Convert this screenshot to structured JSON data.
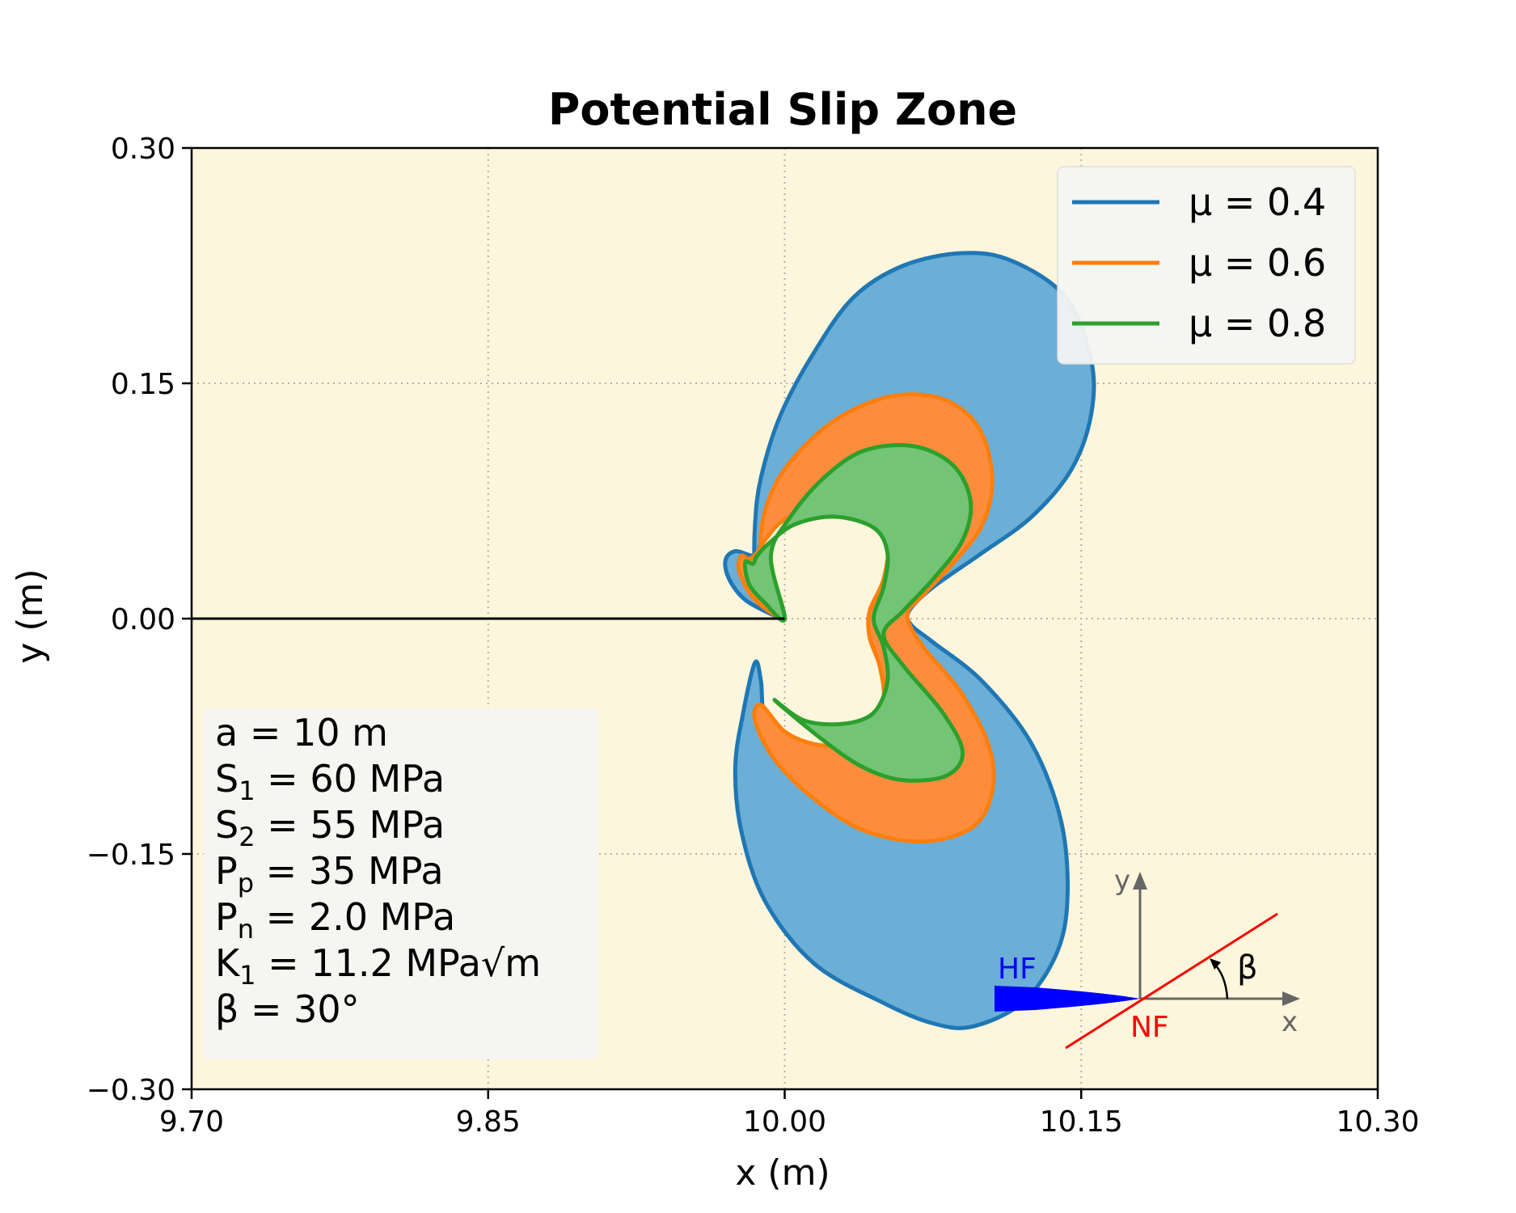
{
  "chart_data": {
    "type": "area",
    "title": "Potential Slip Zone",
    "xlabel": "x (m)",
    "ylabel": "y (m)",
    "xlim": [
      9.7,
      10.3
    ],
    "ylim": [
      -0.3,
      0.3
    ],
    "x_ticks": [
      "9.70",
      "9.85",
      "10.00",
      "10.15",
      "10.30"
    ],
    "y_ticks": [
      "0.30",
      "0.15",
      "0.00",
      "−0.15",
      "−0.30"
    ],
    "x_tick_values": [
      9.7,
      9.85,
      10.0,
      10.15,
      10.3
    ],
    "y_tick_values": [
      0.3,
      0.15,
      0.0,
      -0.15,
      -0.3
    ],
    "grid": true,
    "legend_position": "top-right",
    "background_color": "#fdf6dc",
    "crack_line": {
      "x": [
        9.7,
        10.0
      ],
      "y": [
        0.0,
        0.0
      ],
      "color": "#000000"
    },
    "series": [
      {
        "name": "μ = 0.4",
        "color": "#1f77b4",
        "fill": "#6baed6",
        "points": [
          [
            9.985,
            0.04
          ],
          [
            9.975,
            0.043
          ],
          [
            9.97,
            0.037
          ],
          [
            9.972,
            0.025
          ],
          [
            9.98,
            0.012
          ],
          [
            9.993,
            0.003
          ],
          [
            10.0,
            0.0
          ],
          [
            9.988,
            0.01
          ],
          [
            9.985,
            0.03
          ],
          [
            9.985,
            0.06
          ],
          [
            9.988,
            0.09
          ],
          [
            9.998,
            0.13
          ],
          [
            10.015,
            0.17
          ],
          [
            10.035,
            0.205
          ],
          [
            10.06,
            0.225
          ],
          [
            10.09,
            0.233
          ],
          [
            10.115,
            0.228
          ],
          [
            10.142,
            0.205
          ],
          [
            10.155,
            0.165
          ],
          [
            10.155,
            0.13
          ],
          [
            10.145,
            0.095
          ],
          [
            10.125,
            0.065
          ],
          [
            10.1,
            0.042
          ],
          [
            10.075,
            0.02
          ],
          [
            10.063,
            0.005
          ],
          [
            10.064,
            -0.004
          ],
          [
            10.075,
            -0.015
          ],
          [
            10.1,
            -0.04
          ],
          [
            10.125,
            -0.08
          ],
          [
            10.14,
            -0.13
          ],
          [
            10.143,
            -0.18
          ],
          [
            10.137,
            -0.215
          ],
          [
            10.12,
            -0.245
          ],
          [
            10.095,
            -0.26
          ],
          [
            10.075,
            -0.258
          ],
          [
            10.05,
            -0.245
          ],
          [
            10.015,
            -0.22
          ],
          [
            9.99,
            -0.18
          ],
          [
            9.978,
            -0.135
          ],
          [
            9.975,
            -0.095
          ],
          [
            9.979,
            -0.06
          ],
          [
            9.985,
            -0.028
          ],
          [
            9.988,
            -0.04
          ],
          [
            9.99,
            -0.065
          ],
          [
            10.0,
            -0.08
          ],
          [
            10.015,
            -0.088
          ],
          [
            10.03,
            -0.088
          ],
          [
            10.045,
            -0.078
          ],
          [
            10.053,
            -0.06
          ],
          [
            10.053,
            -0.038
          ],
          [
            10.048,
            -0.018
          ],
          [
            10.043,
            0.0
          ],
          [
            10.048,
            0.018
          ],
          [
            10.054,
            0.04
          ],
          [
            10.052,
            0.06
          ],
          [
            10.04,
            0.072
          ],
          [
            10.02,
            0.074
          ],
          [
            10.003,
            0.068
          ],
          [
            9.993,
            0.058
          ],
          [
            9.988,
            0.048
          ]
        ]
      },
      {
        "name": "μ = 0.6",
        "color": "#ff7f0e",
        "fill": "#fd8d3c",
        "points": [
          [
            9.982,
            0.038
          ],
          [
            9.978,
            0.04
          ],
          [
            9.977,
            0.03
          ],
          [
            9.985,
            0.012
          ],
          [
            10.0,
            0.0
          ],
          [
            9.99,
            0.025
          ],
          [
            9.988,
            0.055
          ],
          [
            9.995,
            0.085
          ],
          [
            10.01,
            0.11
          ],
          [
            10.03,
            0.13
          ],
          [
            10.055,
            0.142
          ],
          [
            10.08,
            0.14
          ],
          [
            10.098,
            0.122
          ],
          [
            10.105,
            0.09
          ],
          [
            10.1,
            0.06
          ],
          [
            10.085,
            0.035
          ],
          [
            10.07,
            0.015
          ],
          [
            10.062,
            0.002
          ],
          [
            10.07,
            -0.018
          ],
          [
            10.088,
            -0.045
          ],
          [
            10.103,
            -0.08
          ],
          [
            10.105,
            -0.11
          ],
          [
            10.095,
            -0.133
          ],
          [
            10.07,
            -0.142
          ],
          [
            10.04,
            -0.135
          ],
          [
            10.015,
            -0.115
          ],
          [
            9.995,
            -0.09
          ],
          [
            9.985,
            -0.065
          ],
          [
            9.988,
            -0.055
          ],
          [
            10.0,
            -0.072
          ],
          [
            10.015,
            -0.08
          ],
          [
            10.03,
            -0.08
          ],
          [
            10.043,
            -0.07
          ],
          [
            10.05,
            -0.052
          ],
          [
            10.048,
            -0.03
          ],
          [
            10.043,
            -0.012
          ],
          [
            10.043,
            0.005
          ],
          [
            10.05,
            0.025
          ],
          [
            10.052,
            0.05
          ],
          [
            10.042,
            0.066
          ],
          [
            10.02,
            0.07
          ],
          [
            10.0,
            0.063
          ],
          [
            9.99,
            0.05
          ],
          [
            9.986,
            0.042
          ]
        ]
      },
      {
        "name": "μ = 0.8",
        "color": "#2ca02c",
        "fill": "#74c476",
        "points": [
          [
            9.984,
            0.035
          ],
          [
            9.98,
            0.036
          ],
          [
            9.982,
            0.022
          ],
          [
            9.99,
            0.01
          ],
          [
            10.0,
            0.0
          ],
          [
            9.993,
            0.04
          ],
          [
            10.003,
            0.065
          ],
          [
            10.02,
            0.09
          ],
          [
            10.04,
            0.107
          ],
          [
            10.065,
            0.11
          ],
          [
            10.085,
            0.098
          ],
          [
            10.094,
            0.075
          ],
          [
            10.09,
            0.05
          ],
          [
            10.075,
            0.025
          ],
          [
            10.06,
            0.005
          ],
          [
            10.05,
            -0.01
          ],
          [
            10.06,
            -0.03
          ],
          [
            10.08,
            -0.06
          ],
          [
            10.09,
            -0.085
          ],
          [
            10.082,
            -0.1
          ],
          [
            10.06,
            -0.103
          ],
          [
            10.04,
            -0.095
          ],
          [
            10.02,
            -0.078
          ],
          [
            9.995,
            -0.052
          ],
          [
            10.01,
            -0.065
          ],
          [
            10.03,
            -0.067
          ],
          [
            10.045,
            -0.06
          ],
          [
            10.052,
            -0.04
          ],
          [
            10.05,
            -0.018
          ],
          [
            10.045,
            0.0
          ],
          [
            10.05,
            0.02
          ],
          [
            10.052,
            0.042
          ],
          [
            10.045,
            0.058
          ],
          [
            10.025,
            0.065
          ],
          [
            10.005,
            0.06
          ],
          [
            9.992,
            0.048
          ],
          [
            9.986,
            0.04
          ]
        ]
      }
    ],
    "parameters_box": {
      "position": "bottom-left",
      "lines": [
        {
          "key": "a",
          "sub": "",
          "eq": " = 10 m"
        },
        {
          "key": "S",
          "sub": "1",
          "eq": " = 60 MPa"
        },
        {
          "key": "S",
          "sub": "2",
          "eq": " = 55 MPa"
        },
        {
          "key": "P",
          "sub": "p",
          "eq": " = 35 MPa"
        },
        {
          "key": "P",
          "sub": "n",
          "eq": " = 2.0 MPa"
        },
        {
          "key": "K",
          "sub": "1",
          "eq": " = 11.2 MPa√m"
        },
        {
          "key": "β",
          "sub": "",
          "eq": "  = 30°"
        }
      ]
    },
    "inset_diagram": {
      "hf_label": "HF",
      "nf_label": "NF",
      "y_axis_label": "y",
      "x_axis_label": "x",
      "angle_label": "β",
      "hf_color": "#0000ff",
      "nf_color": "#ff0000",
      "axis_color": "#666666"
    }
  }
}
